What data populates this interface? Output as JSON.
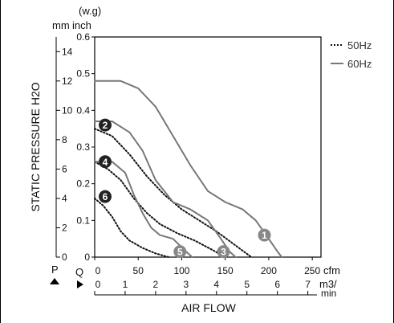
{
  "chart_data": {
    "type": "line",
    "title": "",
    "ylabel": "STATIC PRESSURE H2O",
    "xlabel": "AIR FLOW",
    "y_unit_mm": "mm",
    "y_unit_inch_top": "(w.g)",
    "y_unit_inch": "inch",
    "x_unit_cfm": "cfm",
    "x_unit_m3": "m3/",
    "x_unit_min": "min",
    "p_label": "P",
    "q_label": "Q",
    "ylim": [
      0,
      0.6
    ],
    "xlim": [
      0,
      250
    ],
    "grid": false,
    "legend_position": "top-right",
    "inch_ticks": [
      {
        "v": 0,
        "label": "0"
      },
      {
        "v": 0.1,
        "label": "0.1"
      },
      {
        "v": 0.2,
        "label": "0.2"
      },
      {
        "v": 0.3,
        "label": "0.3"
      },
      {
        "v": 0.4,
        "label": "0.4"
      },
      {
        "v": 0.5,
        "label": "0.5"
      },
      {
        "v": 0.6,
        "label": "0.6"
      }
    ],
    "mm_ticks": [
      {
        "v": 0,
        "label": "0"
      },
      {
        "v": 2,
        "label": "2"
      },
      {
        "v": 4,
        "label": "4"
      },
      {
        "v": 6,
        "label": "6"
      },
      {
        "v": 8,
        "label": "8"
      },
      {
        "v": 10,
        "label": "10"
      },
      {
        "v": 12,
        "label": "12"
      },
      {
        "v": 14,
        "label": "14"
      }
    ],
    "cfm_ticks": [
      {
        "v": 0,
        "label": "0"
      },
      {
        "v": 50,
        "label": "50"
      },
      {
        "v": 100,
        "label": "100"
      },
      {
        "v": 150,
        "label": "150"
      },
      {
        "v": 200,
        "label": "200"
      },
      {
        "v": 250,
        "label": "250"
      }
    ],
    "m3_ticks": [
      {
        "v": 0,
        "label": "0"
      },
      {
        "v": 1,
        "label": "1"
      },
      {
        "v": 2,
        "label": "2"
      },
      {
        "v": 3,
        "label": "3"
      },
      {
        "v": 4,
        "label": "4"
      },
      {
        "v": 5,
        "label": "5"
      },
      {
        "v": 6,
        "label": "6"
      },
      {
        "v": 7,
        "label": "7"
      }
    ],
    "legend": [
      {
        "label": "50Hz",
        "style": "dotted",
        "color": "#111111"
      },
      {
        "label": "60Hz",
        "style": "solid",
        "color": "#777777"
      }
    ],
    "series": [
      {
        "marker": "1",
        "hz": "60Hz",
        "color": "#777777",
        "x": [
          0,
          30,
          50,
          70,
          90,
          110,
          130,
          150,
          170,
          185,
          200,
          210,
          215
        ],
        "y": [
          0.48,
          0.48,
          0.46,
          0.41,
          0.33,
          0.25,
          0.18,
          0.15,
          0.13,
          0.1,
          0.05,
          0.015,
          0
        ]
      },
      {
        "marker": "2",
        "hz": "50Hz",
        "color": "#111111",
        "x": [
          0,
          20,
          40,
          60,
          80,
          100,
          120,
          140,
          160,
          180
        ],
        "y": [
          0.35,
          0.33,
          0.28,
          0.22,
          0.17,
          0.13,
          0.1,
          0.07,
          0.035,
          0
        ]
      },
      {
        "marker": "3",
        "hz": "60Hz",
        "color": "#777777",
        "x": [
          0,
          20,
          40,
          55,
          70,
          90,
          110,
          130,
          145,
          155,
          162
        ],
        "y": [
          0.37,
          0.37,
          0.34,
          0.29,
          0.21,
          0.15,
          0.13,
          0.1,
          0.05,
          0.015,
          0
        ]
      },
      {
        "marker": "4",
        "hz": "50Hz",
        "color": "#111111",
        "x": [
          0,
          15,
          30,
          45,
          60,
          75,
          95,
          115,
          135,
          150
        ],
        "y": [
          0.26,
          0.24,
          0.21,
          0.16,
          0.12,
          0.09,
          0.065,
          0.045,
          0.02,
          0
        ]
      },
      {
        "marker": "5",
        "hz": "60Hz",
        "color": "#777777",
        "x": [
          0,
          20,
          35,
          45,
          55,
          65,
          75,
          90,
          105,
          112
        ],
        "y": [
          0.26,
          0.26,
          0.23,
          0.17,
          0.12,
          0.08,
          0.06,
          0.05,
          0.015,
          0
        ]
      },
      {
        "marker": "6",
        "hz": "50Hz",
        "color": "#111111",
        "x": [
          0,
          10,
          20,
          30,
          40,
          55,
          70,
          85
        ],
        "y": [
          0.16,
          0.14,
          0.11,
          0.07,
          0.045,
          0.025,
          0.01,
          0
        ]
      }
    ],
    "markers": [
      {
        "id": "1",
        "x": 195,
        "y": 0.06,
        "fill": "#888888"
      },
      {
        "id": "2",
        "x": 12,
        "y": 0.36,
        "fill": "#222222"
      },
      {
        "id": "3",
        "x": 148,
        "y": 0.015,
        "fill": "#888888"
      },
      {
        "id": "4",
        "x": 12,
        "y": 0.26,
        "fill": "#222222"
      },
      {
        "id": "5",
        "x": 98,
        "y": 0.015,
        "fill": "#888888"
      },
      {
        "id": "6",
        "x": 12,
        "y": 0.165,
        "fill": "#222222"
      }
    ]
  }
}
